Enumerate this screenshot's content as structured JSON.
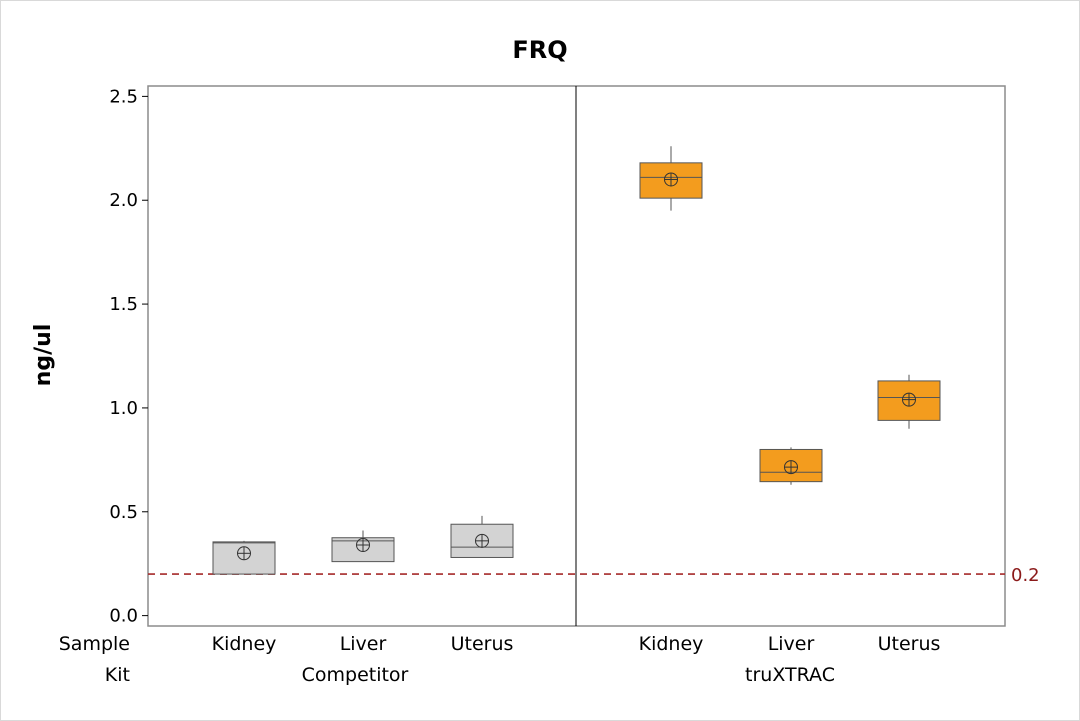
{
  "chart_data": {
    "type": "boxplot",
    "title": "FRQ",
    "ylabel": "ng/ul",
    "ylim": [
      -0.05,
      2.55
    ],
    "yticks": [
      "0.0",
      "0.5",
      "1.0",
      "1.5",
      "2.0",
      "2.5"
    ],
    "x_axis_rows": [
      "Sample",
      "Kit"
    ],
    "panels": [
      {
        "kit": "Competitor",
        "color": "#d3d3d3",
        "boxes": [
          {
            "sample": "Kidney",
            "min": 0.2,
            "q1": 0.2,
            "median": 0.35,
            "q3": 0.355,
            "max": 0.36,
            "mean": 0.3
          },
          {
            "sample": "Liver",
            "min": 0.26,
            "q1": 0.26,
            "median": 0.36,
            "q3": 0.375,
            "max": 0.41,
            "mean": 0.34
          },
          {
            "sample": "Uterus",
            "min": 0.28,
            "q1": 0.28,
            "median": 0.33,
            "q3": 0.44,
            "max": 0.48,
            "mean": 0.36
          }
        ]
      },
      {
        "kit": "truXTRAC",
        "color": "#f39c1e",
        "boxes": [
          {
            "sample": "Kidney",
            "min": 1.95,
            "q1": 2.01,
            "median": 2.11,
            "q3": 2.18,
            "max": 2.26,
            "mean": 2.1
          },
          {
            "sample": "Liver",
            "min": 0.63,
            "q1": 0.645,
            "median": 0.69,
            "q3": 0.8,
            "max": 0.81,
            "mean": 0.715
          },
          {
            "sample": "Uterus",
            "min": 0.9,
            "q1": 0.94,
            "median": 1.05,
            "q3": 1.13,
            "max": 1.16,
            "mean": 1.04
          }
        ]
      }
    ],
    "reference_line": {
      "value": 0.2,
      "label": "0.2",
      "color": "#a52a2a",
      "style": "dashed"
    }
  }
}
